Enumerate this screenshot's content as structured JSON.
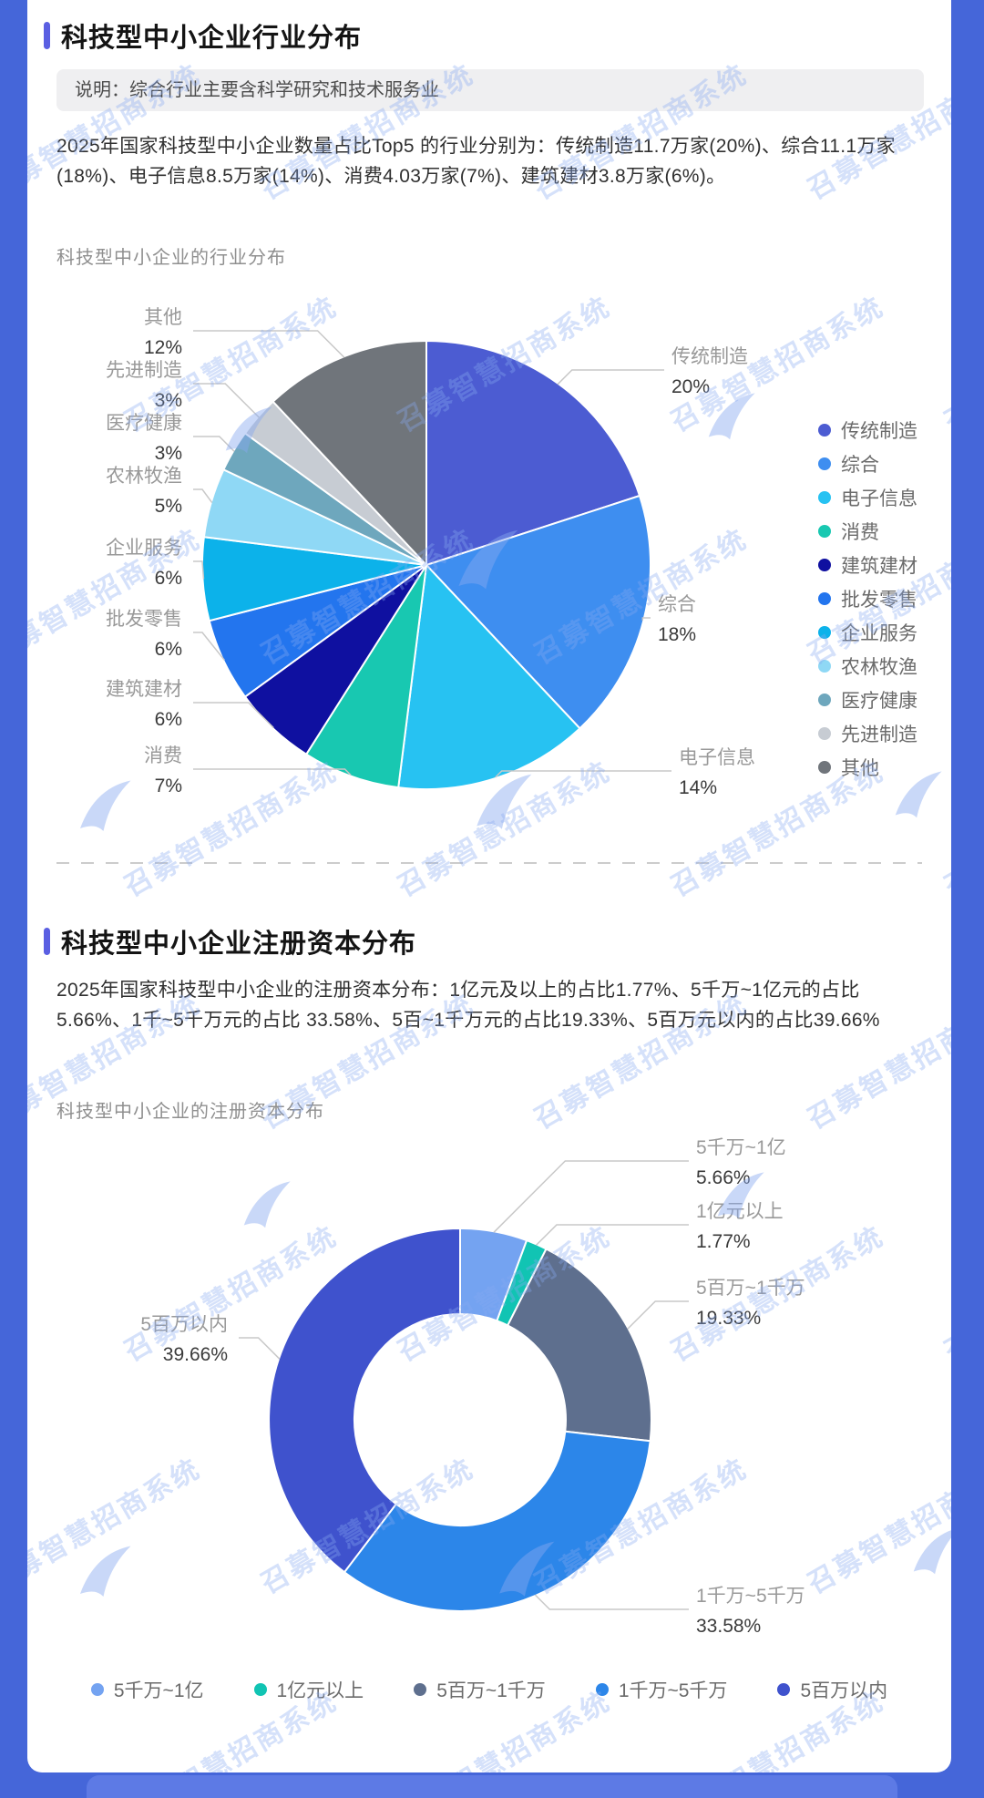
{
  "watermark": {
    "text": "召募智慧招商系统"
  },
  "section1": {
    "title": "科技型中小企业行业分布",
    "note": "说明：综合行业主要含科学研究和技术服务业",
    "paragraph": "2025年国家科技型中小企业数量占比Top5 的行业分别为：传统制造11.7万家(20%)、综合11.1万家(18%)、电子信息8.5万家(14%)、消费4.03万家(7%)、建筑建材3.8万家(6%)。",
    "chart_title": "科技型中小企业的行业分布"
  },
  "section2": {
    "title": "科技型中小企业注册资本分布",
    "paragraph": "2025年国家科技型中小企业的注册资本分布：1亿元及以上的占比1.77%、5千万~1亿元的占比 5.66%、1千~5千万元的占比 33.58%、5百~1千万元的占比19.33%、5百万元以内的占比39.66%",
    "chart_title": "科技型中小企业的注册资本分布"
  },
  "chart_data": [
    {
      "type": "pie",
      "title": "科技型中小企业的行业分布",
      "legend_position": "right",
      "series": [
        {
          "name": "传统制造",
          "value": 20,
          "label": "20%",
          "color": "#4c5cd2"
        },
        {
          "name": "综合",
          "value": 18,
          "label": "18%",
          "color": "#3e8ef0"
        },
        {
          "name": "电子信息",
          "value": 14,
          "label": "14%",
          "color": "#27c2f2"
        },
        {
          "name": "消费",
          "value": 7,
          "label": "7%",
          "color": "#18c8b1"
        },
        {
          "name": "建筑建材",
          "value": 6,
          "label": "6%",
          "color": "#0f10a0"
        },
        {
          "name": "批发零售",
          "value": 6,
          "label": "6%",
          "color": "#2375ee"
        },
        {
          "name": "企业服务",
          "value": 6,
          "label": "6%",
          "color": "#0cb2ea"
        },
        {
          "name": "农林牧渔",
          "value": 5,
          "label": "5%",
          "color": "#8fd8f5"
        },
        {
          "name": "医疗健康",
          "value": 3,
          "label": "3%",
          "color": "#6ea7bd"
        },
        {
          "name": "先进制造",
          "value": 3,
          "label": "3%",
          "color": "#c7ccd3"
        },
        {
          "name": "其他",
          "value": 12,
          "label": "12%",
          "color": "#70757b"
        }
      ]
    },
    {
      "type": "donut",
      "title": "科技型中小企业的注册资本分布",
      "legend_position": "bottom",
      "series": [
        {
          "name": "5千万~1亿",
          "value": 5.66,
          "label": "5.66%",
          "color": "#74a3f1"
        },
        {
          "name": "1亿元以上",
          "value": 1.77,
          "label": "1.77%",
          "color": "#11c4b3"
        },
        {
          "name": "5百万~1千万",
          "value": 19.33,
          "label": "19.33%",
          "color": "#5e6f8e"
        },
        {
          "name": "1千万~5千万",
          "value": 33.58,
          "label": "33.58%",
          "color": "#2c86e9"
        },
        {
          "name": "5百万以内",
          "value": 39.66,
          "label": "39.66%",
          "color": "#3f52cd"
        }
      ]
    }
  ]
}
